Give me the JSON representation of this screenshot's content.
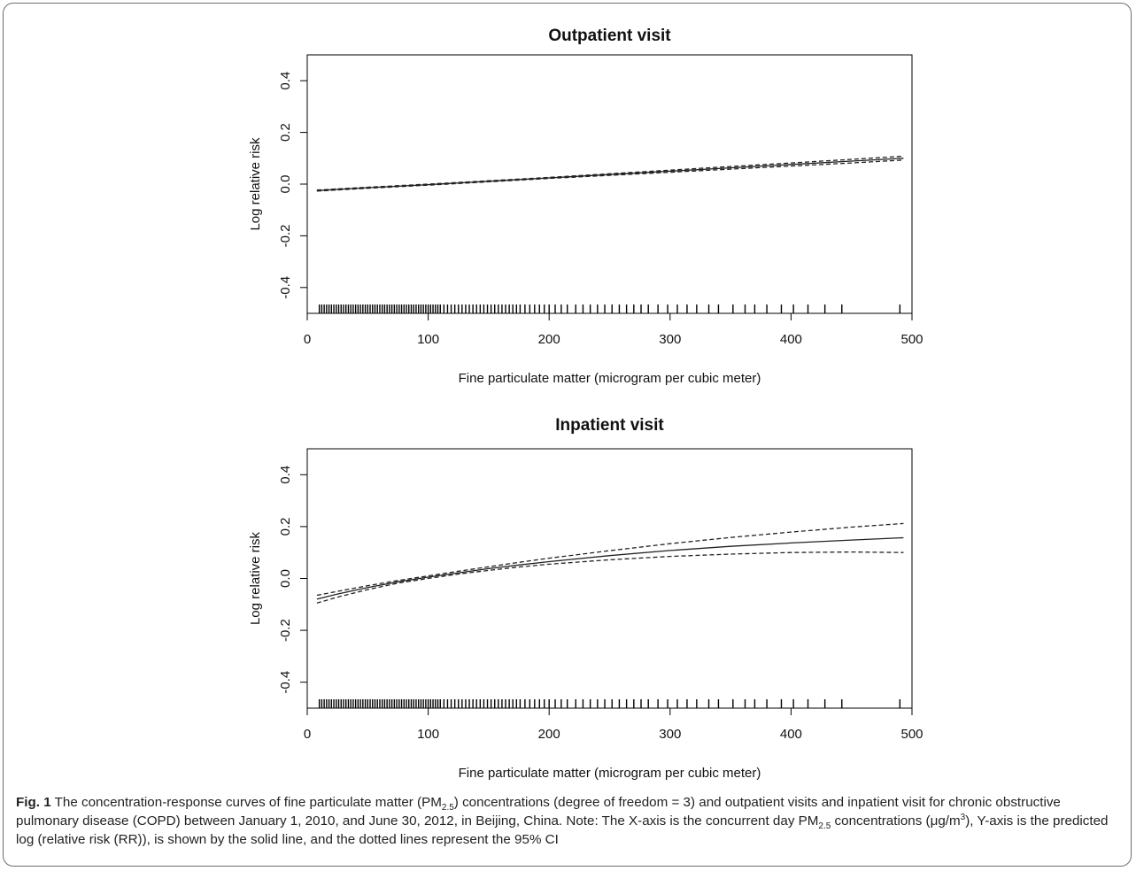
{
  "chart_data": [
    {
      "type": "line",
      "title": "Outpatient visit",
      "xlabel": "Fine particulate matter (microgram per cubic meter)",
      "ylabel": "Log relative risk",
      "xlim": [
        0,
        500
      ],
      "ylim": [
        -0.5,
        0.5
      ],
      "xticks": [
        "0",
        "100",
        "200",
        "300",
        "400",
        "500"
      ],
      "yticks": [
        "-0.4",
        "-0.2",
        "0.0",
        "0.2",
        "0.4"
      ],
      "grid": false,
      "series": [
        {
          "role": "estimate",
          "style": "solid",
          "x": [
            8,
            50,
            100,
            150,
            200,
            250,
            300,
            350,
            400,
            450,
            493
          ],
          "y": [
            -0.025,
            -0.014,
            -0.002,
            0.011,
            0.024,
            0.037,
            0.05,
            0.063,
            0.076,
            0.089,
            0.1
          ]
        },
        {
          "role": "ci-upper",
          "style": "dashed",
          "x": [
            8,
            50,
            100,
            150,
            200,
            250,
            300,
            350,
            400,
            450,
            493
          ],
          "y": [
            -0.023,
            -0.012,
            0.0,
            0.013,
            0.026,
            0.04,
            0.054,
            0.068,
            0.082,
            0.096,
            0.108
          ]
        },
        {
          "role": "ci-lower",
          "style": "dashed",
          "x": [
            8,
            50,
            100,
            150,
            200,
            250,
            300,
            350,
            400,
            450,
            493
          ],
          "y": [
            -0.027,
            -0.016,
            -0.004,
            0.009,
            0.022,
            0.034,
            0.046,
            0.058,
            0.07,
            0.082,
            0.093
          ]
        }
      ],
      "rug": [
        10,
        12,
        14,
        16,
        18,
        20,
        22,
        24,
        26,
        28,
        30,
        32,
        34,
        36,
        38,
        40,
        42,
        44,
        46,
        48,
        50,
        52,
        54,
        56,
        58,
        60,
        62,
        64,
        66,
        68,
        70,
        72,
        74,
        76,
        78,
        80,
        82,
        84,
        86,
        88,
        90,
        92,
        94,
        96,
        98,
        100,
        102,
        104,
        106,
        108,
        110,
        113,
        116,
        119,
        122,
        125,
        128,
        131,
        134,
        137,
        140,
        143,
        146,
        149,
        152,
        155,
        158,
        161,
        164,
        167,
        170,
        173,
        176,
        180,
        184,
        188,
        192,
        196,
        200,
        205,
        210,
        215,
        222,
        228,
        234,
        240,
        246,
        252,
        258,
        264,
        270,
        276,
        282,
        290,
        298,
        306,
        314,
        322,
        332,
        340,
        352,
        362,
        370,
        380,
        392,
        402,
        414,
        428,
        442,
        490
      ]
    },
    {
      "type": "line",
      "title": "Inpatient visit",
      "xlabel": "Fine particulate matter (microgram per cubic meter)",
      "ylabel": "Log relative risk",
      "xlim": [
        0,
        500
      ],
      "ylim": [
        -0.5,
        0.5
      ],
      "xticks": [
        "0",
        "100",
        "200",
        "300",
        "400",
        "500"
      ],
      "yticks": [
        "-0.4",
        "-0.2",
        "0.0",
        "0.2",
        "0.4"
      ],
      "grid": false,
      "series": [
        {
          "role": "estimate",
          "style": "solid",
          "x": [
            8,
            25,
            50,
            75,
            100,
            125,
            150,
            175,
            200,
            250,
            300,
            350,
            400,
            450,
            493
          ],
          "y": [
            -0.08,
            -0.06,
            -0.035,
            -0.013,
            0.005,
            0.022,
            0.038,
            0.052,
            0.065,
            0.088,
            0.108,
            0.124,
            0.137,
            0.148,
            0.157
          ]
        },
        {
          "role": "ci-upper",
          "style": "dashed",
          "x": [
            8,
            25,
            50,
            75,
            100,
            125,
            150,
            175,
            200,
            250,
            300,
            350,
            400,
            450,
            493
          ],
          "y": [
            -0.065,
            -0.05,
            -0.028,
            -0.008,
            0.01,
            0.028,
            0.045,
            0.062,
            0.078,
            0.107,
            0.134,
            0.158,
            0.179,
            0.198,
            0.212
          ]
        },
        {
          "role": "ci-lower",
          "style": "dashed",
          "x": [
            8,
            25,
            50,
            75,
            100,
            125,
            150,
            175,
            200,
            250,
            300,
            350,
            400,
            450,
            493
          ],
          "y": [
            -0.095,
            -0.072,
            -0.043,
            -0.018,
            0.0,
            0.017,
            0.031,
            0.044,
            0.055,
            0.072,
            0.085,
            0.094,
            0.1,
            0.102,
            0.1
          ]
        }
      ],
      "rug": [
        10,
        12,
        14,
        16,
        18,
        20,
        22,
        24,
        26,
        28,
        30,
        32,
        34,
        36,
        38,
        40,
        42,
        44,
        46,
        48,
        50,
        52,
        54,
        56,
        58,
        60,
        62,
        64,
        66,
        68,
        70,
        72,
        74,
        76,
        78,
        80,
        82,
        84,
        86,
        88,
        90,
        92,
        94,
        96,
        98,
        100,
        102,
        104,
        106,
        108,
        110,
        113,
        116,
        119,
        122,
        125,
        128,
        131,
        134,
        137,
        140,
        143,
        146,
        149,
        152,
        155,
        158,
        161,
        164,
        167,
        170,
        173,
        176,
        180,
        184,
        188,
        192,
        196,
        200,
        205,
        210,
        215,
        222,
        228,
        234,
        240,
        246,
        252,
        258,
        264,
        270,
        276,
        282,
        290,
        298,
        306,
        314,
        322,
        332,
        340,
        352,
        362,
        370,
        380,
        392,
        402,
        414,
        428,
        442,
        490
      ]
    }
  ],
  "caption": {
    "label": "Fig. 1",
    "text_1": " The concentration-response curves of fine particulate matter (PM",
    "sub_1": "2.5",
    "text_2": ") concentrations (degree of freedom = 3) and outpatient visits and inpatient visit for chronic obstructive pulmonary disease (COPD) between January 1, 2010, and June 30, 2012, in Beijing, China. Note: The X-axis is the concurrent day PM",
    "sub_2": "2.5",
    "text_3": " concentrations (μg/m",
    "sup_1": "3",
    "text_4": "), Y-axis is the predicted log (relative risk (RR)), is shown by the solid line, and the dotted lines represent the 95% CI"
  }
}
